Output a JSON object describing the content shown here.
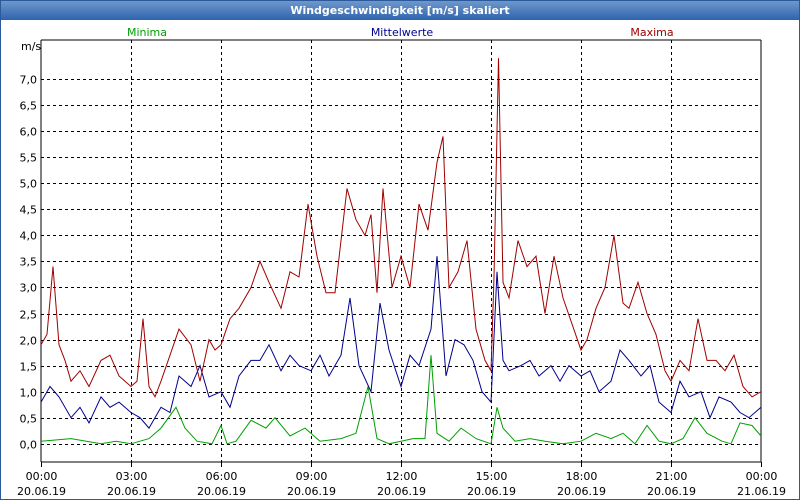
{
  "window": {
    "title": "Windgeschwindigkeit [m/s] skaliert"
  },
  "chart_data": {
    "type": "line",
    "title": "Windgeschwindigkeit [m/s] skaliert",
    "ylabel": "m/s",
    "xlabel": "",
    "ylim": [
      -0.35,
      7.75
    ],
    "xlim": [
      0,
      24
    ],
    "grid": true,
    "y_ticks": [
      0,
      0.5,
      1,
      1.5,
      2,
      2.5,
      3,
      3.5,
      4,
      4.5,
      5,
      5.5,
      6,
      6.5,
      7
    ],
    "y_tick_labels": [
      "0,0",
      "0,5",
      "1,0",
      "1,5",
      "2,0",
      "2,5",
      "3,0",
      "3,5",
      "4,0",
      "4,5",
      "5,0",
      "5,5",
      "6,0",
      "6,5",
      "7,0"
    ],
    "x_ticks": [
      0,
      3,
      6,
      9,
      12,
      15,
      18,
      21,
      24
    ],
    "x_tick_labels": [
      {
        "time": "00:00",
        "date": "20.06.19"
      },
      {
        "time": "03:00",
        "date": "20.06.19"
      },
      {
        "time": "06:00",
        "date": "20.06.19"
      },
      {
        "time": "09:00",
        "date": "20.06.19"
      },
      {
        "time": "12:00",
        "date": "20.06.19"
      },
      {
        "time": "15:00",
        "date": "20.06.19"
      },
      {
        "time": "18:00",
        "date": "20.06.19"
      },
      {
        "time": "21:00",
        "date": "20.06.19"
      },
      {
        "time": "00:00",
        "date": "21.06.19"
      }
    ],
    "series": [
      {
        "name": "Minima",
        "color": "#00a000",
        "x": [
          0,
          1,
          2,
          2.5,
          3,
          3.3,
          3.6,
          4,
          4.5,
          4.8,
          5.2,
          5.7,
          6,
          6.2,
          6.5,
          7,
          7.5,
          7.8,
          8.3,
          8.8,
          9.3,
          10,
          10.5,
          10.9,
          11.2,
          11.6,
          12,
          12.4,
          12.8,
          13,
          13.2,
          13.6,
          14,
          14.5,
          15,
          15.2,
          15.4,
          15.8,
          16.3,
          16.8,
          17.4,
          18,
          18.5,
          19,
          19.4,
          19.8,
          20.2,
          20.6,
          21,
          21.4,
          21.8,
          22.2,
          22.7,
          23,
          23.3,
          23.7,
          24
        ],
        "values": [
          0.05,
          0.1,
          0.0,
          0.05,
          0.0,
          0.05,
          0.1,
          0.3,
          0.7,
          0.3,
          0.05,
          0.0,
          0.35,
          0.0,
          0.05,
          0.45,
          0.3,
          0.5,
          0.15,
          0.3,
          0.05,
          0.1,
          0.2,
          1.1,
          0.1,
          0.0,
          0.05,
          0.1,
          0.1,
          1.7,
          0.2,
          0.05,
          0.3,
          0.1,
          0.0,
          0.7,
          0.3,
          0.05,
          0.1,
          0.05,
          0.0,
          0.05,
          0.2,
          0.1,
          0.2,
          0.0,
          0.35,
          0.05,
          0.0,
          0.1,
          0.5,
          0.2,
          0.05,
          0.0,
          0.4,
          0.35,
          0.15
        ]
      },
      {
        "name": "Mittelwerte",
        "color": "#00008b",
        "x": [
          0,
          0.3,
          0.6,
          1,
          1.3,
          1.6,
          2,
          2.3,
          2.6,
          3,
          3.3,
          3.6,
          4,
          4.3,
          4.6,
          5,
          5.3,
          5.6,
          6,
          6.3,
          6.6,
          7,
          7.3,
          7.6,
          8,
          8.3,
          8.6,
          9,
          9.3,
          9.6,
          10,
          10.3,
          10.6,
          11,
          11.3,
          11.6,
          12,
          12.3,
          12.6,
          13,
          13.2,
          13.5,
          13.8,
          14.1,
          14.4,
          14.7,
          15,
          15.2,
          15.4,
          15.6,
          16,
          16.3,
          16.6,
          17,
          17.3,
          17.6,
          18,
          18.3,
          18.6,
          19,
          19.3,
          19.6,
          20,
          20.3,
          20.6,
          21,
          21.3,
          21.6,
          22,
          22.3,
          22.6,
          23,
          23.3,
          23.6,
          24
        ],
        "values": [
          0.8,
          1.1,
          0.9,
          0.5,
          0.7,
          0.4,
          0.9,
          0.7,
          0.8,
          0.6,
          0.5,
          0.3,
          0.7,
          0.6,
          1.3,
          1.1,
          1.5,
          0.9,
          1.0,
          0.7,
          1.3,
          1.6,
          1.6,
          1.9,
          1.4,
          1.7,
          1.5,
          1.4,
          1.7,
          1.3,
          1.7,
          2.8,
          1.5,
          1.0,
          2.7,
          1.8,
          1.1,
          1.7,
          1.5,
          2.2,
          3.6,
          1.3,
          2.0,
          1.9,
          1.6,
          1.0,
          0.8,
          3.3,
          1.6,
          1.4,
          1.5,
          1.6,
          1.3,
          1.5,
          1.2,
          1.5,
          1.3,
          1.4,
          1.0,
          1.2,
          1.8,
          1.6,
          1.3,
          1.5,
          0.8,
          0.6,
          1.2,
          0.9,
          1.0,
          0.5,
          0.9,
          0.8,
          0.6,
          0.5,
          0.7
        ]
      },
      {
        "name": "Maxima",
        "color": "#a00000",
        "x": [
          0,
          0.2,
          0.4,
          0.6,
          0.8,
          1,
          1.3,
          1.6,
          2,
          2.3,
          2.6,
          3,
          3.2,
          3.4,
          3.6,
          3.8,
          4,
          4.3,
          4.6,
          5,
          5.3,
          5.6,
          5.8,
          6,
          6.3,
          6.6,
          7,
          7.3,
          7.6,
          8,
          8.3,
          8.6,
          8.9,
          9.2,
          9.5,
          9.8,
          10,
          10.2,
          10.5,
          10.8,
          11,
          11.2,
          11.4,
          11.7,
          12,
          12.3,
          12.6,
          12.9,
          13.2,
          13.4,
          13.6,
          13.9,
          14.2,
          14.5,
          14.8,
          15,
          15.1,
          15.25,
          15.4,
          15.6,
          15.9,
          16.2,
          16.5,
          16.8,
          17.1,
          17.4,
          17.7,
          18,
          18.2,
          18.5,
          18.8,
          19.1,
          19.4,
          19.6,
          19.9,
          20.2,
          20.5,
          20.8,
          21,
          21.3,
          21.6,
          21.9,
          22.2,
          22.5,
          22.8,
          23.1,
          23.4,
          23.7,
          24
        ],
        "values": [
          1.9,
          2.1,
          3.4,
          1.9,
          1.6,
          1.2,
          1.4,
          1.1,
          1.6,
          1.7,
          1.3,
          1.1,
          1.2,
          2.4,
          1.1,
          0.9,
          1.2,
          1.7,
          2.2,
          1.9,
          1.2,
          2.0,
          1.8,
          1.9,
          2.4,
          2.6,
          3.0,
          3.5,
          3.1,
          2.6,
          3.3,
          3.2,
          4.6,
          3.6,
          2.9,
          2.9,
          3.9,
          4.9,
          4.3,
          4.0,
          4.4,
          2.9,
          4.9,
          3.0,
          3.6,
          3.0,
          4.6,
          4.1,
          5.4,
          5.9,
          3.0,
          3.3,
          3.9,
          2.2,
          1.6,
          1.4,
          3.2,
          7.4,
          3.1,
          2.8,
          3.9,
          3.4,
          3.6,
          2.5,
          3.6,
          2.8,
          2.3,
          1.8,
          2.0,
          2.6,
          3.0,
          4.0,
          2.7,
          2.6,
          3.1,
          2.5,
          2.1,
          1.4,
          1.2,
          1.6,
          1.4,
          2.4,
          1.6,
          1.6,
          1.4,
          1.7,
          1.1,
          0.9,
          1.0
        ]
      }
    ]
  }
}
